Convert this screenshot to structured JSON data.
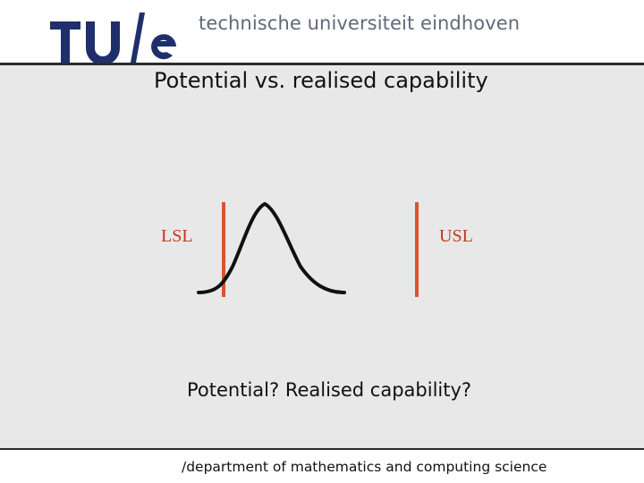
{
  "header": {
    "logo_text": "TU/e",
    "institution": "technische universiteit eindhoven"
  },
  "slide": {
    "title": "Potential vs. realised capability",
    "lsl_label": "LSL",
    "usl_label": "USL",
    "question": "Potential? Realised capability?"
  },
  "footer": {
    "department": "/department of mathematics and computing science"
  },
  "colors": {
    "logo_blue": "#1f2f6b",
    "spec_limit": "#d9532b",
    "curve": "#111111",
    "background": "#e8e8e8"
  }
}
